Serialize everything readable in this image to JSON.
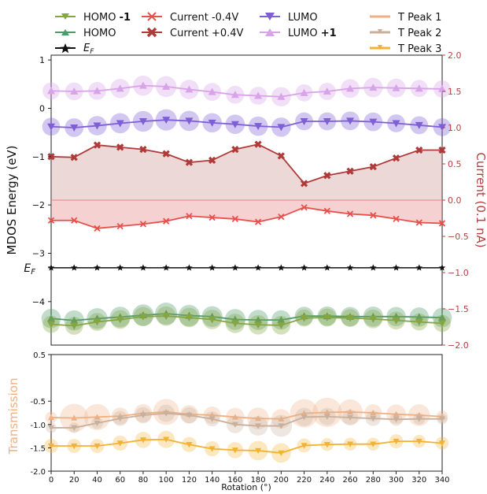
{
  "chart_data": [
    {
      "type": "line",
      "panel": "top",
      "ylabel_left": "MDOS Energy (eV)",
      "ylabel_right": "Current (0.1 nA)",
      "x": [
        0,
        20,
        40,
        60,
        80,
        100,
        120,
        140,
        160,
        180,
        200,
        220,
        240,
        260,
        280,
        300,
        320,
        340
      ],
      "xlim": [
        0,
        340
      ],
      "ylim_left": [
        -4.9,
        1.1
      ],
      "ylim_right": [
        -2.0,
        2.0
      ],
      "left_ticks": [
        "1",
        "0",
        "−1",
        "−2",
        "−3",
        "−4"
      ],
      "right_ticks": [
        "2.0",
        "1.5",
        "1.0",
        "0.5",
        "0.0",
        "−0.5",
        "−1.0",
        "−1.5",
        "−2.0"
      ],
      "fermi_tick": "E",
      "fermi_sub": "F",
      "series": [
        {
          "key": "lumo1",
          "name": "LUMO",
          "name_bold": "+1",
          "axis": "left",
          "color": "#d8a3e8",
          "marker": "tri-up",
          "values": [
            0.36,
            0.35,
            0.36,
            0.41,
            0.47,
            0.45,
            0.39,
            0.34,
            0.28,
            0.26,
            0.24,
            0.32,
            0.35,
            0.41,
            0.43,
            0.42,
            0.41,
            0.4
          ],
          "sizes": [
            0.55,
            0.6,
            0.6,
            0.7,
            0.75,
            0.8,
            0.7,
            0.6,
            0.6,
            0.6,
            0.7,
            0.55,
            0.55,
            0.65,
            0.7,
            0.65,
            0.55,
            0.55
          ]
        },
        {
          "key": "lumo",
          "name": "LUMO",
          "axis": "left",
          "color": "#7e5fd6",
          "marker": "tri-down",
          "values": [
            -0.38,
            -0.4,
            -0.36,
            -0.31,
            -0.27,
            -0.24,
            -0.26,
            -0.3,
            -0.33,
            -0.37,
            -0.39,
            -0.27,
            -0.27,
            -0.26,
            -0.28,
            -0.31,
            -0.35,
            -0.39
          ],
          "sizes": [
            0.6,
            0.65,
            0.7,
            0.75,
            0.8,
            0.85,
            0.75,
            0.7,
            0.7,
            0.7,
            0.7,
            0.6,
            0.6,
            0.65,
            0.65,
            0.6,
            0.6,
            0.6
          ]
        },
        {
          "key": "cur_pos",
          "name": "Current +0.4V",
          "axis": "right",
          "color": "#b03a3a",
          "marker": "x-thick",
          "values": [
            0.6,
            0.59,
            0.76,
            0.73,
            0.7,
            0.64,
            0.52,
            0.55,
            0.7,
            0.77,
            0.61,
            0.23,
            0.34,
            0.4,
            0.46,
            0.58,
            0.69,
            0.69
          ]
        },
        {
          "key": "cur_neg",
          "name": "Current -0.4V",
          "axis": "right",
          "color": "#e8504c",
          "marker": "x",
          "values": [
            -0.28,
            -0.28,
            -0.39,
            -0.36,
            -0.33,
            -0.29,
            -0.22,
            -0.24,
            -0.26,
            -0.3,
            -0.23,
            -0.1,
            -0.15,
            -0.19,
            -0.21,
            -0.26,
            -0.31,
            -0.32
          ]
        },
        {
          "key": "ef",
          "name": "E",
          "name_sub": "F",
          "axis": "left",
          "color": "#111111",
          "marker": "star",
          "values": [
            -3.3,
            -3.3,
            -3.3,
            -3.3,
            -3.3,
            -3.3,
            -3.3,
            -3.3,
            -3.3,
            -3.3,
            -3.3,
            -3.3,
            -3.3,
            -3.3,
            -3.3,
            -3.3,
            -3.3,
            -3.3
          ]
        },
        {
          "key": "homo",
          "name": "HOMO",
          "axis": "left",
          "color": "#4f9a6a",
          "marker": "tri-up",
          "values": [
            -4.35,
            -4.39,
            -4.35,
            -4.32,
            -4.28,
            -4.25,
            -4.29,
            -4.31,
            -4.37,
            -4.38,
            -4.38,
            -4.3,
            -4.3,
            -4.31,
            -4.31,
            -4.31,
            -4.32,
            -4.33
          ],
          "sizes": [
            0.7,
            0.75,
            0.8,
            0.8,
            0.85,
            0.9,
            0.85,
            0.8,
            0.8,
            0.75,
            0.7,
            0.65,
            0.7,
            0.7,
            0.75,
            0.7,
            0.7,
            0.7
          ]
        },
        {
          "key": "homo1",
          "name": "HOMO",
          "name_bold": "-1",
          "axis": "left",
          "color": "#86a543",
          "marker": "tri-down",
          "values": [
            -4.47,
            -4.5,
            -4.42,
            -4.37,
            -4.31,
            -4.3,
            -4.33,
            -4.37,
            -4.45,
            -4.48,
            -4.49,
            -4.34,
            -4.33,
            -4.34,
            -4.36,
            -4.39,
            -4.42,
            -4.45
          ],
          "sizes": [
            0.55,
            0.6,
            0.6,
            0.65,
            0.7,
            0.7,
            0.7,
            0.7,
            0.7,
            0.7,
            0.65,
            0.55,
            0.6,
            0.6,
            0.65,
            0.6,
            0.55,
            0.55
          ]
        }
      ]
    },
    {
      "type": "line",
      "panel": "bottom",
      "ylabel": "Transmission",
      "xlabel": "Rotation (°)",
      "x": [
        0,
        20,
        40,
        60,
        80,
        100,
        120,
        140,
        160,
        180,
        200,
        220,
        240,
        260,
        280,
        300,
        320,
        340
      ],
      "xlim": [
        0,
        340
      ],
      "ylim": [
        -2.0,
        0.5
      ],
      "y_ticks": [
        "0.5",
        "-0.5",
        "-1.0",
        "-1.5",
        "-2.0"
      ],
      "x_ticks": [
        "0",
        "20",
        "40",
        "60",
        "80",
        "100",
        "120",
        "140",
        "160",
        "180",
        "200",
        "220",
        "240",
        "260",
        "280",
        "300",
        "320",
        "340"
      ],
      "series": [
        {
          "key": "tp1",
          "name": "T Peak 1",
          "color": "#f0b083",
          "marker": "tri-up",
          "values": [
            -0.85,
            -0.86,
            -0.84,
            -0.82,
            -0.76,
            -0.73,
            -0.78,
            -0.8,
            -0.84,
            -0.87,
            -0.88,
            -0.76,
            -0.74,
            -0.73,
            -0.75,
            -0.78,
            -0.8,
            -0.83
          ],
          "sizes": [
            0.25,
            1.0,
            0.9,
            0.5,
            0.55,
            0.9,
            0.55,
            0.5,
            0.55,
            0.7,
            0.6,
            1.0,
            1.05,
            0.85,
            0.5,
            0.6,
            0.7,
            0.25
          ]
        },
        {
          "key": "tp2",
          "name": "T Peak 2",
          "color": "#c8b09d",
          "marker": "tri-down",
          "values": [
            -1.07,
            -1.07,
            -0.97,
            -0.87,
            -0.8,
            -0.76,
            -0.8,
            -0.88,
            -1.0,
            -1.03,
            -1.03,
            -0.84,
            -0.83,
            -0.85,
            -0.87,
            -0.89,
            -0.88,
            -0.88
          ],
          "sizes": [
            0.2,
            0.2,
            0.25,
            0.4,
            0.45,
            0.5,
            0.45,
            0.4,
            0.5,
            0.6,
            0.7,
            0.55,
            0.5,
            0.45,
            0.4,
            0.3,
            0.25,
            0.2
          ]
        },
        {
          "key": "tp3",
          "name": "T Peak 3",
          "color": "#f2b233",
          "marker": "tri-down",
          "values": [
            -1.46,
            -1.46,
            -1.46,
            -1.4,
            -1.33,
            -1.32,
            -1.43,
            -1.52,
            -1.55,
            -1.56,
            -1.61,
            -1.45,
            -1.43,
            -1.42,
            -1.42,
            -1.36,
            -1.36,
            -1.4
          ],
          "sizes": [
            0.35,
            0.35,
            0.35,
            0.4,
            0.45,
            0.5,
            0.4,
            0.4,
            0.45,
            0.6,
            0.6,
            0.35,
            0.3,
            0.3,
            0.3,
            0.35,
            0.3,
            0.3
          ]
        }
      ]
    }
  ],
  "legend": {
    "homo1": {
      "text": "HOMO ",
      "bold": "-1"
    },
    "homo": {
      "text": "HOMO"
    },
    "ef": {
      "text": "E",
      "sub": "F"
    },
    "cur_neg": {
      "text": "Current -0.4V"
    },
    "cur_pos": {
      "text": "Current +0.4V"
    },
    "lumo": {
      "text": "LUMO"
    },
    "lumo1": {
      "text": "LUMO ",
      "bold": "+1"
    },
    "tp1": {
      "text": "T Peak 1"
    },
    "tp2": {
      "text": "T Peak 2"
    },
    "tp3": {
      "text": "T Peak 3"
    }
  },
  "colors": {
    "axis": "#222222",
    "right_axis": "#b54040",
    "transmission_label": "#f0b083",
    "fill_red": "#e58585",
    "fill_dark": "#c47f7f"
  }
}
